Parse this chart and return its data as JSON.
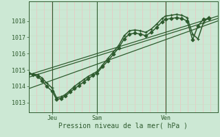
{
  "bg_color": "#cce8d4",
  "grid_color_v": "#f0c0c0",
  "grid_color_h": "#c8e0c8",
  "line_color": "#2d5a2d",
  "xlabel": "Pression niveau de la mer( hPa )",
  "xlabel_color": "#2d5a2d",
  "xtick_labels": [
    "Jeu",
    "Sam",
    "Ven"
  ],
  "xtick_x": [
    0.13,
    0.38,
    0.76
  ],
  "ytick_labels": [
    "1013",
    "1014",
    "1015",
    "1016",
    "1017",
    "1018"
  ],
  "ytick_values": [
    1013,
    1014,
    1015,
    1016,
    1017,
    1018
  ],
  "ylim": [
    1012.4,
    1019.2
  ],
  "xlim": [
    0.0,
    1.05
  ],
  "series_main1": {
    "x": [
      0.0,
      0.025,
      0.05,
      0.075,
      0.1,
      0.13,
      0.155,
      0.18,
      0.205,
      0.23,
      0.255,
      0.28,
      0.305,
      0.33,
      0.355,
      0.38,
      0.41,
      0.44,
      0.47,
      0.5,
      0.53,
      0.56,
      0.59,
      0.62,
      0.65,
      0.68,
      0.71,
      0.74,
      0.76,
      0.79,
      0.82,
      0.85,
      0.88,
      0.91,
      0.94,
      0.97,
      1.0
    ],
    "y": [
      1014.8,
      1014.75,
      1014.7,
      1014.5,
      1014.2,
      1013.9,
      1013.3,
      1013.35,
      1013.5,
      1013.75,
      1014.0,
      1014.2,
      1014.4,
      1014.6,
      1014.75,
      1014.9,
      1015.3,
      1015.7,
      1016.1,
      1016.5,
      1017.1,
      1017.4,
      1017.45,
      1017.4,
      1017.3,
      1017.5,
      1017.8,
      1018.15,
      1018.3,
      1018.35,
      1018.4,
      1018.35,
      1018.2,
      1017.2,
      1016.9,
      1017.9,
      1018.25
    ],
    "marker": "+"
  },
  "series_main2": {
    "x": [
      0.0,
      0.025,
      0.05,
      0.075,
      0.1,
      0.13,
      0.155,
      0.18,
      0.205,
      0.23,
      0.255,
      0.28,
      0.305,
      0.33,
      0.355,
      0.38,
      0.41,
      0.44,
      0.47,
      0.5,
      0.53,
      0.56,
      0.59,
      0.62,
      0.65,
      0.68,
      0.71,
      0.74,
      0.76,
      0.79,
      0.82,
      0.85,
      0.88,
      0.91,
      0.94,
      0.97,
      1.0
    ],
    "y": [
      1014.8,
      1014.7,
      1014.6,
      1014.35,
      1014.0,
      1013.7,
      1013.2,
      1013.25,
      1013.4,
      1013.65,
      1013.85,
      1014.05,
      1014.25,
      1014.45,
      1014.65,
      1014.8,
      1015.2,
      1015.55,
      1015.95,
      1016.35,
      1016.9,
      1017.2,
      1017.25,
      1017.2,
      1017.1,
      1017.3,
      1017.6,
      1017.95,
      1018.1,
      1018.15,
      1018.2,
      1018.15,
      1018.0,
      1016.85,
      1017.7,
      1018.1,
      1018.15
    ],
    "marker": "D"
  },
  "series_linear": [
    {
      "x": [
        0.0,
        1.05
      ],
      "y": [
        1014.7,
        1018.3
      ]
    },
    {
      "x": [
        0.0,
        1.05
      ],
      "y": [
        1014.55,
        1018.15
      ]
    },
    {
      "x": [
        0.0,
        1.05
      ],
      "y": [
        1013.85,
        1018.0
      ]
    }
  ],
  "vline_positions": [
    0.13,
    0.38,
    0.76
  ],
  "vline_color": "#2d5a2d",
  "tick_color": "#2d5a2d",
  "label_fontsize": 7,
  "tick_fontsize": 6,
  "n_hgrid": 14,
  "n_vgrid": 26
}
